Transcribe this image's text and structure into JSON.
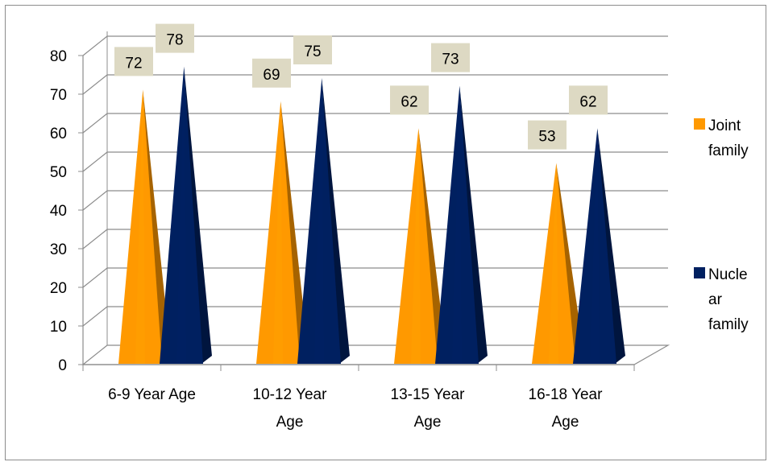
{
  "chart_data": {
    "type": "bar",
    "style": "3d-cone",
    "title": "",
    "xlabel": "",
    "ylabel": "",
    "categories": [
      "6-9 Year Age",
      "10-12 Year Age",
      "13-15 Year Age",
      "16-18 Year Age"
    ],
    "category_label_lines": [
      [
        "6-9 Year Age"
      ],
      [
        "10-12 Year",
        "Age"
      ],
      [
        "13-15 Year",
        "Age"
      ],
      [
        "16-18 Year",
        "Age"
      ]
    ],
    "series": [
      {
        "name": "Joint family",
        "legend_lines": [
          "Joint",
          "family"
        ],
        "color": "#FF9900",
        "values": [
          72,
          69,
          62,
          53
        ]
      },
      {
        "name": "Nuclear family",
        "legend_lines": [
          "Nucle",
          "ar",
          "family"
        ],
        "color": "#002060",
        "values": [
          78,
          75,
          73,
          62
        ]
      }
    ],
    "ylim": [
      0,
      80
    ],
    "yticks": [
      0,
      10,
      20,
      30,
      40,
      50,
      60,
      70,
      80
    ],
    "grid": true,
    "data_labels": true,
    "data_label_background": "#DDD9C3",
    "legend_position": "right"
  }
}
